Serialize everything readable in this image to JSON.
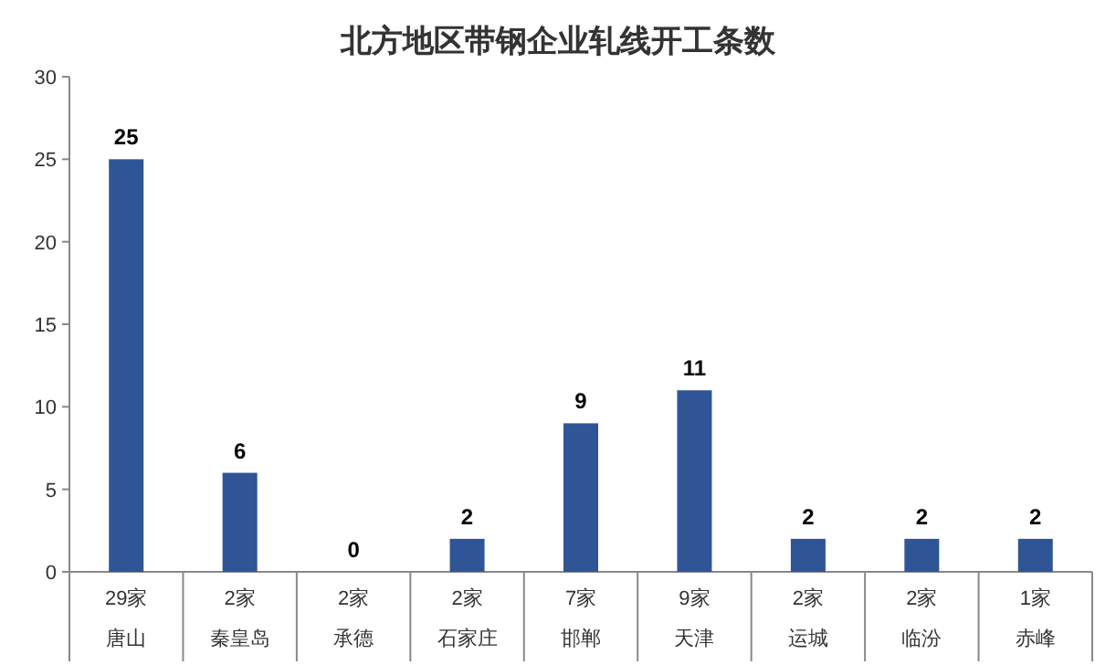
{
  "chart_data": {
    "type": "bar",
    "title": "北方地区带钢企业轧线开工条数",
    "categories": [
      "29家唐山",
      "2家秦皇岛",
      "2家承德",
      "2家石家庄",
      "7家邯郸",
      "9家天津",
      "2家运城",
      "2家临汾",
      "1家赤峰"
    ],
    "values": [
      25,
      6,
      0,
      2,
      9,
      11,
      2,
      2,
      2
    ],
    "color": "#2f5597",
    "ylim": [
      0,
      30
    ],
    "yticks": [
      0,
      5,
      10,
      15,
      20,
      25,
      30
    ],
    "data_labels": true
  }
}
